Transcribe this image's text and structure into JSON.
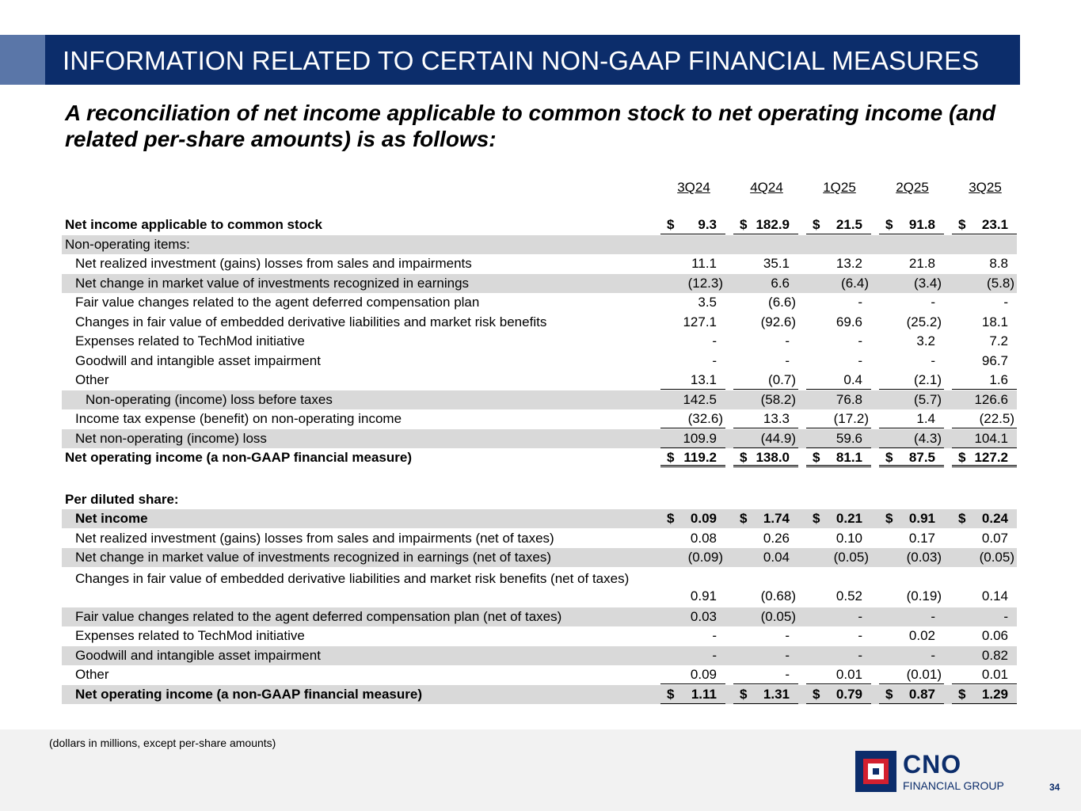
{
  "header": {
    "title": "INFORMATION RELATED TO CERTAIN NON-GAAP FINANCIAL MEASURES"
  },
  "subtitle": "A reconciliation of net income applicable to common stock to net operating income (and related per-share amounts) is as follows:",
  "columns": [
    "3Q24",
    "4Q24",
    "1Q25",
    "2Q25",
    "3Q25"
  ],
  "rows": [
    {
      "label": "Net income applicable to common stock",
      "bold": true,
      "indent": 0,
      "values": [
        "9.3",
        "182.9",
        "21.5",
        "91.8",
        "23.1"
      ],
      "dollar": true,
      "line": "u1"
    },
    {
      "label": "Non-operating items:",
      "shade": true,
      "indent": 1,
      "values": []
    },
    {
      "label": "Net realized investment (gains) losses from sales and impairments",
      "indent": 2,
      "values": [
        "11.1",
        "35.1",
        "13.2",
        "21.8",
        "8.8"
      ]
    },
    {
      "label": "Net change in market value of investments recognized in earnings",
      "shade": true,
      "indent": 2,
      "values": [
        "(12.3)",
        "6.6",
        "(6.4)",
        "(3.4)",
        "(5.8)"
      ]
    },
    {
      "label": "Fair value changes related to the agent deferred compensation plan",
      "indent": 2,
      "values": [
        "3.5",
        "(6.6)",
        "-",
        "-",
        "-"
      ]
    },
    {
      "label": "Changes in fair value of embedded derivative liabilities and market risk benefits",
      "indent": 2,
      "values": [
        "127.1",
        "(92.6)",
        "69.6",
        "(25.2)",
        "18.1"
      ]
    },
    {
      "label": "Expenses related to TechMod initiative",
      "indent": 2,
      "values": [
        "-",
        "-",
        "-",
        "3.2",
        "7.2"
      ]
    },
    {
      "label": "Goodwill and intangible asset impairment",
      "indent": 2,
      "values": [
        "-",
        "-",
        "-",
        "-",
        "96.7"
      ]
    },
    {
      "label": "Other",
      "indent": 2,
      "values": [
        "13.1",
        "(0.7)",
        "0.4",
        "(2.1)",
        "1.6"
      ],
      "line": "u1"
    },
    {
      "label": "Non-operating (income) loss before taxes",
      "shade": true,
      "indent": 3,
      "values": [
        "142.5",
        "(58.2)",
        "76.8",
        "(5.7)",
        "126.6"
      ]
    },
    {
      "label": "Income tax expense (benefit) on non-operating income",
      "indent": 2,
      "values": [
        "(32.6)",
        "13.3",
        "(17.2)",
        "1.4",
        "(22.5)"
      ],
      "line": "u1"
    },
    {
      "label": "Net non-operating (income) loss",
      "shade": true,
      "indent": 2,
      "values": [
        "109.9",
        "(44.9)",
        "59.6",
        "(4.3)",
        "104.1"
      ],
      "line": "u1"
    },
    {
      "label": "Net operating income (a non-GAAP financial measure)",
      "bold": true,
      "indent": 0,
      "values": [
        "119.2",
        "138.0",
        "81.1",
        "87.5",
        "127.2"
      ],
      "dollar": true,
      "line": "u2"
    },
    {
      "label": "Per diluted share:",
      "bold": true,
      "indent": 0,
      "values": [],
      "gapBefore": true
    },
    {
      "label": "Net income",
      "bold": true,
      "shade": true,
      "indent": 2,
      "values": [
        "0.09",
        "1.74",
        "0.21",
        "0.91",
        "0.24"
      ],
      "dollar": true
    },
    {
      "label": "Net realized investment (gains) losses from sales and impairments (net of taxes)",
      "indent": 2,
      "values": [
        "0.08",
        "0.26",
        "0.10",
        "0.17",
        "0.07"
      ]
    },
    {
      "label": "Net change in market value of investments recognized in earnings (net of taxes)",
      "shade": true,
      "indent": 2,
      "values": [
        "(0.09)",
        "0.04",
        "(0.05)",
        "(0.03)",
        "(0.05)"
      ]
    },
    {
      "label": "Changes in fair value of embedded derivative liabilities and market risk benefits (net of taxes)",
      "tall": true,
      "indent": 2,
      "values": [
        "0.91",
        "(0.68)",
        "0.52",
        "(0.19)",
        "0.14"
      ]
    },
    {
      "label": "Fair value changes related to the agent deferred compensation plan (net of taxes)",
      "shade": true,
      "indent": 2,
      "values": [
        "0.03",
        "(0.05)",
        "-",
        "-",
        "-"
      ]
    },
    {
      "label": "Expenses related to TechMod initiative",
      "indent": 2,
      "values": [
        "-",
        "-",
        "-",
        "0.02",
        "0.06"
      ]
    },
    {
      "label": "Goodwill and intangible asset impairment",
      "shade": true,
      "indent": 2,
      "values": [
        "-",
        "-",
        "-",
        "-",
        "0.82"
      ]
    },
    {
      "label": "Other",
      "indent": 2,
      "values": [
        "0.09",
        "-",
        "0.01",
        "(0.01)",
        "0.01"
      ],
      "line": "u1"
    },
    {
      "label": "Net operating income (a non-GAAP financial measure)",
      "bold": true,
      "shade": true,
      "indent": 2,
      "values": [
        "1.11",
        "1.31",
        "0.79",
        "0.87",
        "1.29"
      ],
      "dollar": true,
      "line": "u1"
    }
  ],
  "currency_symbol": "$",
  "footnote": "(dollars in millions, except per-share amounts)",
  "logo": {
    "name": "CNO",
    "tagline": "FINANCIAL GROUP"
  },
  "page_number": "34",
  "colors": {
    "navy": "#0c2d6b",
    "accent": "#5a76a8",
    "shade": "#d9d9d9",
    "logo_red": "#d3202f"
  }
}
